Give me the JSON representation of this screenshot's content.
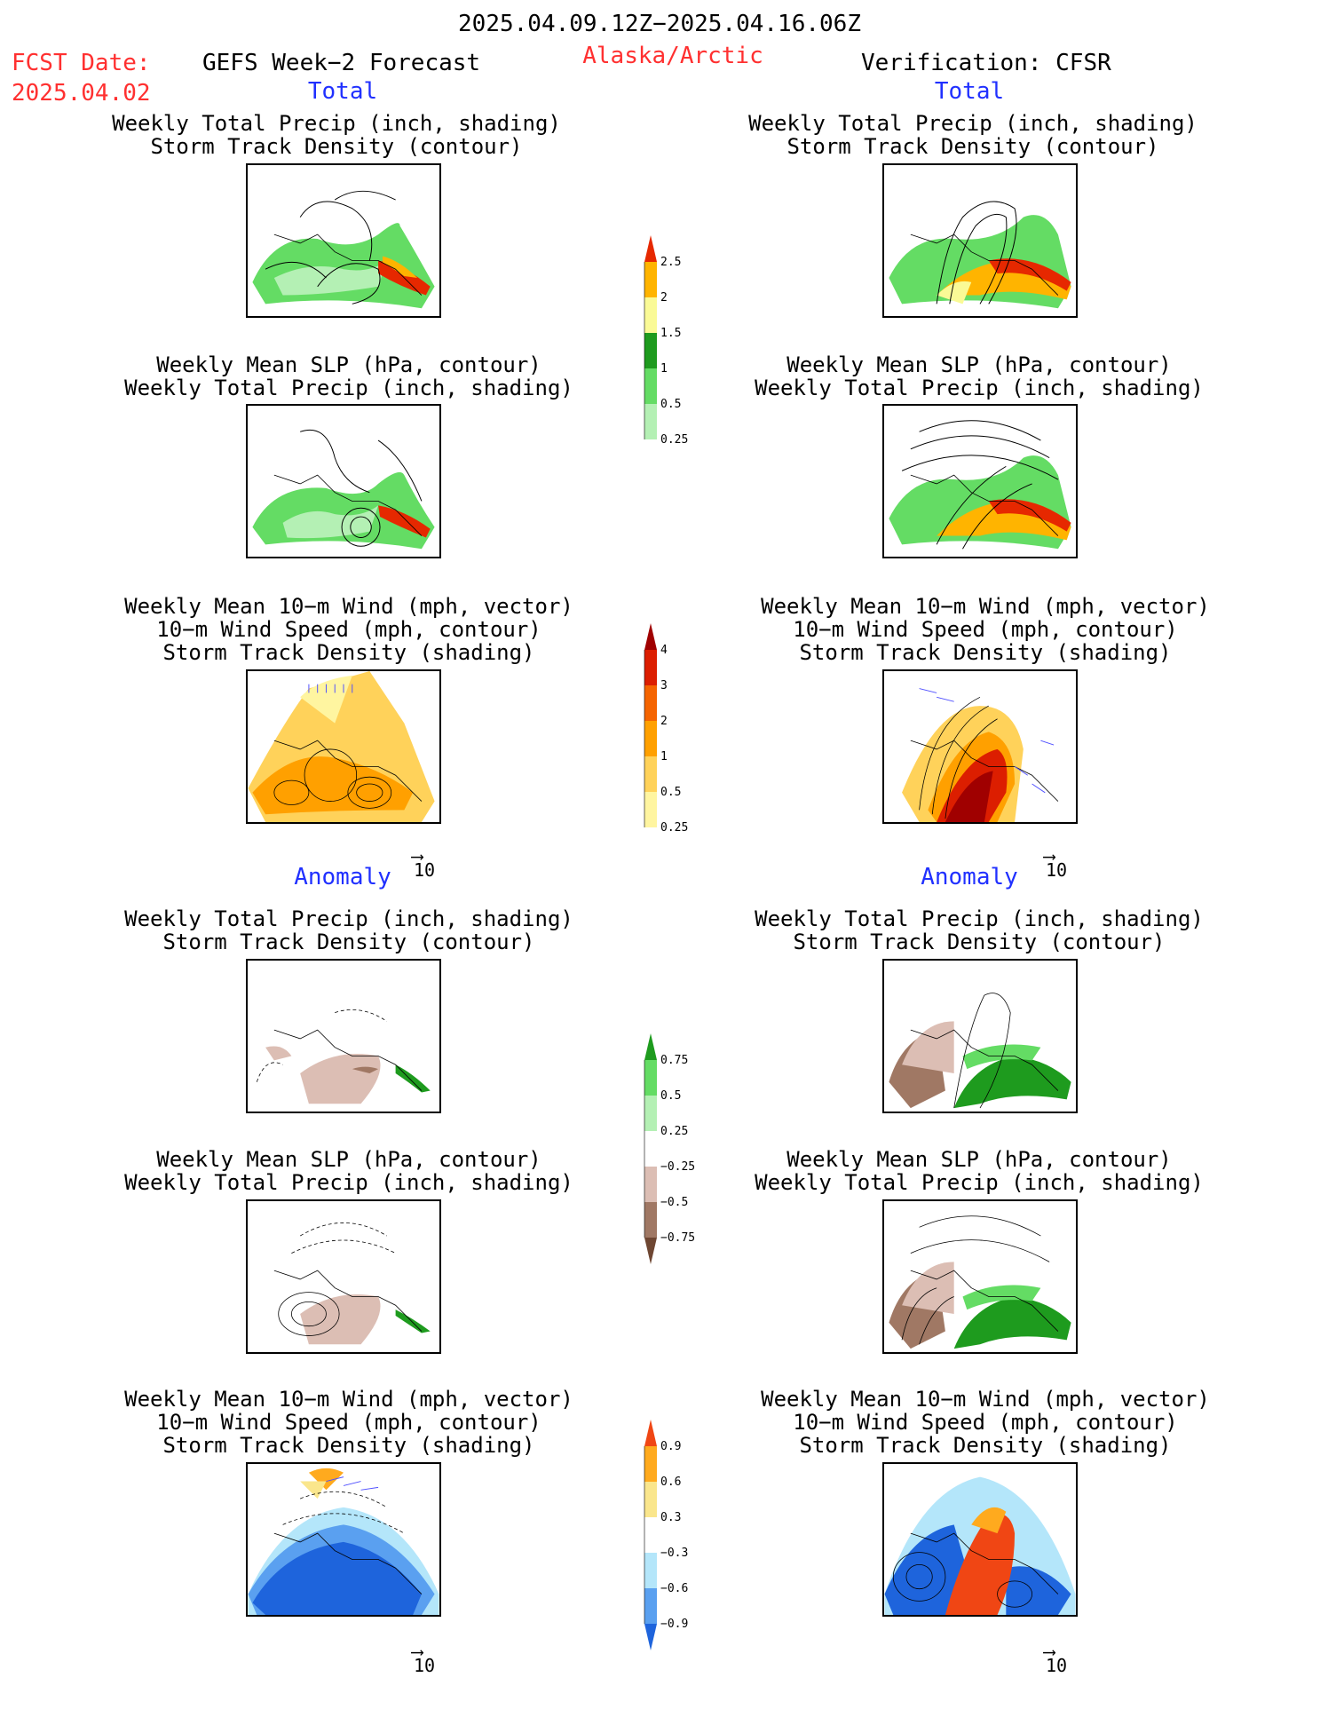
{
  "header": {
    "date_range": "2025.04.09.12Z−2025.04.16.06Z",
    "fcst_label": "FCST Date:",
    "fcst_date": "2025.04.02",
    "model": "GEFS Week−2 Forecast",
    "region": "Alaska/Arctic",
    "verification": "Verification: CFSR"
  },
  "sections": {
    "total_left": "Total",
    "total_right": "Total",
    "anomaly_left": "Anomaly",
    "anomaly_right": "Anomaly"
  },
  "panel_titles": {
    "precip_track": [
      "Weekly Total Precip (inch, shading)",
      "Storm Track Density (contour)"
    ],
    "slp_precip": [
      "Weekly Mean SLP (hPa, contour)",
      "Weekly Total Precip (inch, shading)"
    ],
    "wind_track": [
      "Weekly Mean 10−m Wind (mph, vector)",
      "10−m Wind Speed (mph, contour)",
      "Storm Track Density (shading)"
    ]
  },
  "vector_reference": "10",
  "colors": {
    "precip": [
      "#ffffff",
      "#b4f0b4",
      "#64dc64",
      "#1e9b1e",
      "#fafa96",
      "#ffb400",
      "#e62800"
    ],
    "track_total": [
      "#ffffff",
      "#fff5a0",
      "#ffd25a",
      "#ffa000",
      "#f56400",
      "#dc1e00",
      "#a00000"
    ],
    "precip_anom": [
      "#6e4632",
      "#a07864",
      "#dcbeb4",
      "#ffffff",
      "#b4f0b4",
      "#64dc64",
      "#1e9b1e"
    ],
    "track_anom": [
      "#1e64dc",
      "#5aa0f0",
      "#b4e6fa",
      "#ffffff",
      "#fae68c",
      "#ffaa1e",
      "#f04614"
    ]
  },
  "chart_data": [
    {
      "type": "heatmap",
      "name": "colorbar-total-precip",
      "levels": [
        0.25,
        0.5,
        1,
        1.5,
        2,
        2.5
      ],
      "labels": [
        "0.25",
        "0.5",
        "1",
        "1.5",
        "2",
        "2.5"
      ]
    },
    {
      "type": "heatmap",
      "name": "colorbar-total-storm-track",
      "levels": [
        0.25,
        0.5,
        1,
        2,
        3,
        4
      ],
      "labels": [
        "0.25",
        "0.5",
        "1",
        "2",
        "3",
        "4"
      ]
    },
    {
      "type": "heatmap",
      "name": "colorbar-anomaly-precip",
      "levels": [
        -0.75,
        -0.5,
        -0.25,
        0.25,
        0.5,
        0.75
      ],
      "labels": [
        "−0.75",
        "−0.5",
        "−0.25",
        "0.25",
        "0.5",
        "0.75"
      ]
    },
    {
      "type": "heatmap",
      "name": "colorbar-anomaly-storm-track",
      "levels": [
        -0.9,
        -0.6,
        -0.3,
        0.3,
        0.6,
        0.9
      ],
      "labels": [
        "−0.9",
        "−0.6",
        "−0.3",
        "0.3",
        "0.6",
        "0.9"
      ]
    }
  ]
}
